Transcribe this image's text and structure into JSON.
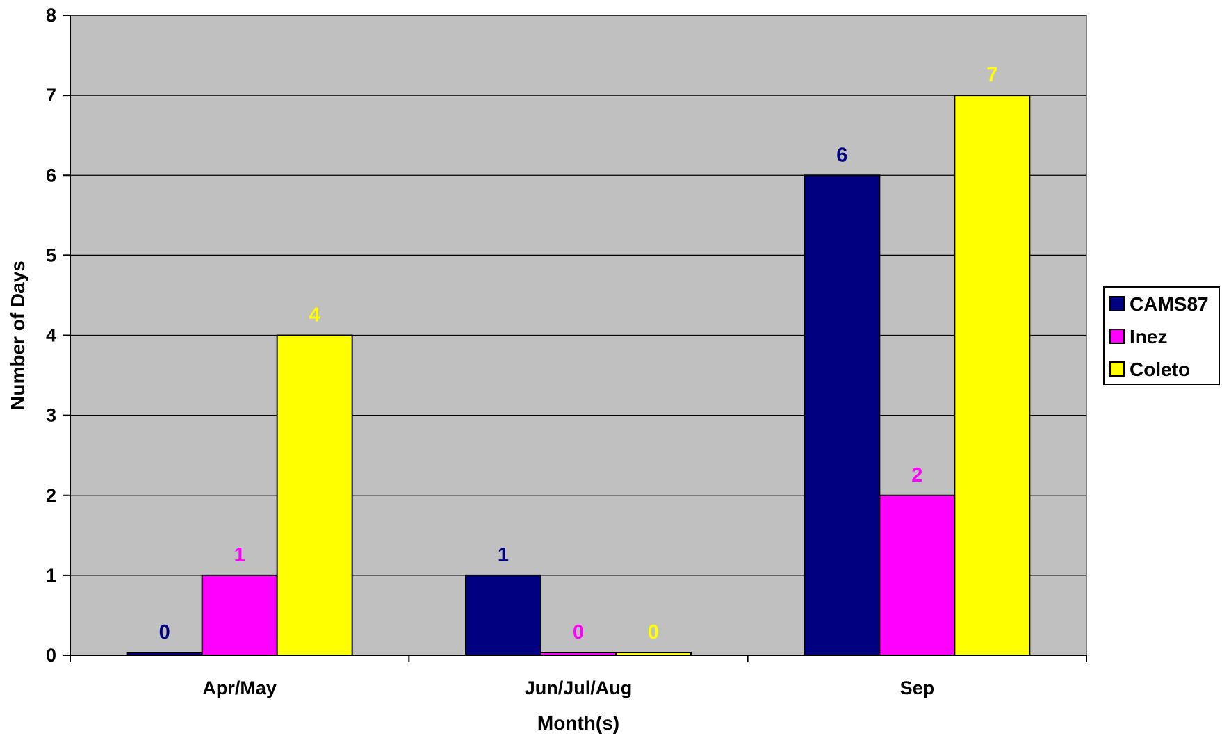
{
  "chart_data": {
    "type": "bar",
    "categories": [
      "Apr/May",
      "Jun/Jul/Aug",
      "Sep"
    ],
    "series": [
      {
        "name": "CAMS87",
        "values": [
          0,
          1,
          6
        ],
        "color": "#000080",
        "label_color": "#000080"
      },
      {
        "name": "Inez",
        "values": [
          1,
          0,
          2
        ],
        "color": "#FF00FF",
        "label_color": "#FF00FF"
      },
      {
        "name": "Coleto",
        "values": [
          4,
          0,
          7
        ],
        "color": "#FFFF00",
        "label_color": "#FFFF00"
      }
    ],
    "xlabel": "Month(s)",
    "ylabel": "Number of Days",
    "ylim": [
      0,
      8
    ],
    "yticks": [
      0,
      1,
      2,
      3,
      4,
      5,
      6,
      7,
      8
    ],
    "grid": true,
    "plot_background": "#C0C0C0",
    "legend_position": "right"
  }
}
